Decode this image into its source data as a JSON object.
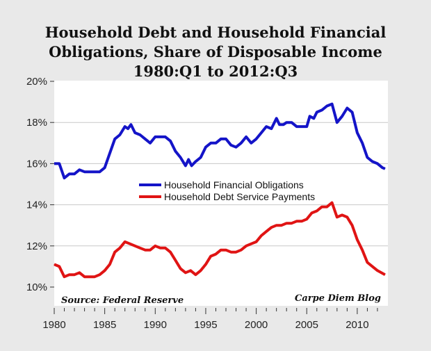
{
  "chart_data": {
    "type": "line",
    "title": [
      "Household Debt and Household Financial",
      "Obligations, Share of Disposable Income",
      "1980:Q1 to 2012:Q3"
    ],
    "xlabel": "",
    "ylabel": "",
    "xlim": [
      1980,
      2012.75
    ],
    "ylim": [
      10,
      20
    ],
    "yticks": [
      10,
      12,
      14,
      16,
      18,
      20
    ],
    "ytick_labels": [
      "10%",
      "12%",
      "14%",
      "16%",
      "18%",
      "20%"
    ],
    "xticks": [
      1980,
      1985,
      1990,
      1995,
      2000,
      2005,
      2010
    ],
    "xtick_labels": [
      "1980",
      "1985",
      "1990",
      "1995",
      "2000",
      "2005",
      "2010"
    ],
    "grid": true,
    "legend": "center",
    "source": "Source: Federal Reserve",
    "credit": "Carpe Diem Blog",
    "series": [
      {
        "name": "Household Financial Obligations",
        "color": "#1414c8",
        "x": [
          1980,
          1980.5,
          1981,
          1981.5,
          1982,
          1982.5,
          1983,
          1984,
          1984.5,
          1985,
          1985.5,
          1986,
          1986.5,
          1987,
          1987.3,
          1987.6,
          1988,
          1988.5,
          1989,
          1989.5,
          1990,
          1990.5,
          1991,
          1991.5,
          1992,
          1992.5,
          1993,
          1993.3,
          1993.6,
          1994,
          1994.5,
          1995,
          1995.5,
          1996,
          1996.5,
          1997,
          1997.5,
          1998,
          1998.5,
          1999,
          1999.5,
          2000,
          2000.5,
          2001,
          2001.5,
          2002,
          2002.3,
          2002.7,
          2003,
          2003.5,
          2004,
          2004.5,
          2005,
          2005.3,
          2005.7,
          2006,
          2006.5,
          2007,
          2007.5,
          2008,
          2008.5,
          2009,
          2009.5,
          2010,
          2010.5,
          2011,
          2011.5,
          2012,
          2012.5,
          2012.75
        ],
        "values": [
          16.0,
          16.0,
          15.3,
          15.5,
          15.5,
          15.7,
          15.6,
          15.6,
          15.6,
          15.8,
          16.5,
          17.2,
          17.4,
          17.8,
          17.7,
          17.9,
          17.5,
          17.4,
          17.2,
          17.0,
          17.3,
          17.3,
          17.3,
          17.1,
          16.6,
          16.3,
          15.9,
          16.2,
          15.9,
          16.1,
          16.3,
          16.8,
          17.0,
          17.0,
          17.2,
          17.2,
          16.9,
          16.8,
          17.0,
          17.3,
          17.0,
          17.2,
          17.5,
          17.8,
          17.7,
          18.2,
          17.9,
          17.9,
          18.0,
          18.0,
          17.8,
          17.8,
          17.8,
          18.3,
          18.2,
          18.5,
          18.6,
          18.8,
          18.9,
          18.0,
          18.3,
          18.7,
          18.5,
          17.5,
          17.0,
          16.3,
          16.1,
          16.0,
          15.8,
          15.75
        ]
      },
      {
        "name": "Household Debt Service Payments",
        "color": "#e01414",
        "x": [
          1980,
          1980.5,
          1981,
          1981.5,
          1982,
          1982.5,
          1983,
          1984,
          1984.5,
          1985,
          1985.5,
          1986,
          1986.5,
          1987,
          1987.5,
          1988,
          1988.5,
          1989,
          1989.5,
          1990,
          1990.5,
          1991,
          1991.5,
          1992,
          1992.5,
          1993,
          1993.5,
          1994,
          1994.5,
          1995,
          1995.5,
          1996,
          1996.5,
          1997,
          1997.5,
          1998,
          1998.5,
          1999,
          1999.5,
          2000,
          2000.5,
          2001,
          2001.5,
          2002,
          2002.5,
          2003,
          2003.5,
          2004,
          2004.5,
          2005,
          2005.5,
          2006,
          2006.5,
          2007,
          2007.5,
          2008,
          2008.5,
          2009,
          2009.5,
          2010,
          2010.5,
          2011,
          2011.5,
          2012,
          2012.75
        ],
        "values": [
          11.1,
          11.0,
          10.5,
          10.6,
          10.6,
          10.7,
          10.5,
          10.5,
          10.6,
          10.8,
          11.1,
          11.7,
          11.9,
          12.2,
          12.1,
          12.0,
          11.9,
          11.8,
          11.8,
          12.0,
          11.9,
          11.9,
          11.7,
          11.3,
          10.9,
          10.7,
          10.8,
          10.6,
          10.8,
          11.1,
          11.5,
          11.6,
          11.8,
          11.8,
          11.7,
          11.7,
          11.8,
          12.0,
          12.1,
          12.2,
          12.5,
          12.7,
          12.9,
          13.0,
          13.0,
          13.1,
          13.1,
          13.2,
          13.2,
          13.3,
          13.6,
          13.7,
          13.9,
          13.9,
          14.1,
          13.4,
          13.5,
          13.4,
          13.0,
          12.3,
          11.8,
          11.2,
          11.0,
          10.8,
          10.6
        ]
      }
    ]
  }
}
